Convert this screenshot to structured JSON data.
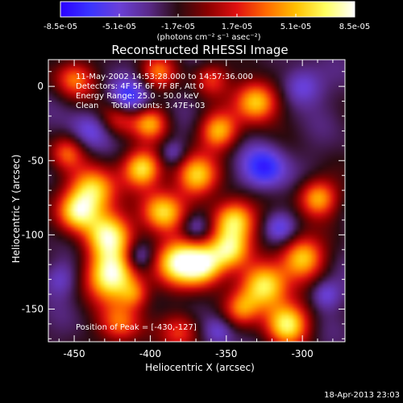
{
  "colorbar": {
    "tick_labels": [
      "-8.5e-05",
      "-5.1e-05",
      "-1.7e-05",
      "1.7e-05",
      "5.1e-05",
      "8.5e-05"
    ],
    "units_label": "(photons cm⁻² s⁻¹ asec⁻²)",
    "colors": [
      "#2a00ff",
      "#3a34ff",
      "#6a40d8",
      "#5a2a8a",
      "#2a0a10",
      "#8a0000",
      "#e01010",
      "#ff6a00",
      "#ffc000",
      "#ffff60",
      "#ffffff"
    ]
  },
  "plot": {
    "title": "Reconstructed RHESSI Image",
    "xlabel": "Heliocentric X (arcsec)",
    "ylabel": "Heliocentric Y (arcsec)",
    "xlim": [
      -467,
      -272
    ],
    "ylim": [
      -172,
      18
    ],
    "x_ticks": [
      "-450",
      "-400",
      "-350",
      "-300"
    ],
    "y_ticks": [
      "0",
      "-50",
      "-100",
      "-150"
    ],
    "annotations": [
      "11-May-2002 14:53:28.000 to 14:57:36.000",
      "Detectors: 4F 5F 6F 7F 8F, Att 0",
      "Energy Range: 25.0 - 50.0 keV",
      "Clean     Total counts: 3.47E+03"
    ],
    "peak_label": "Position of Peak = [-430,-127]",
    "peak": {
      "x": -430,
      "y": -127
    }
  },
  "timestamp": "18-Apr-2013 23:03",
  "map": {
    "blobs": [
      {
        "x": -425,
        "y": -127,
        "s": 12,
        "a": 1.0
      },
      {
        "x": -428,
        "y": -100,
        "s": 11,
        "a": 0.85
      },
      {
        "x": -438,
        "y": -70,
        "s": 11,
        "a": 0.85
      },
      {
        "x": -448,
        "y": -85,
        "s": 9,
        "a": 0.7
      },
      {
        "x": -455,
        "y": -45,
        "s": 8,
        "a": 0.45
      },
      {
        "x": -450,
        "y": 5,
        "s": 9,
        "a": 0.55
      },
      {
        "x": -420,
        "y": -20,
        "s": 9,
        "a": 0.55
      },
      {
        "x": -405,
        "y": -55,
        "s": 9,
        "a": 0.8
      },
      {
        "x": -400,
        "y": -25,
        "s": 8,
        "a": 0.6
      },
      {
        "x": -392,
        "y": -85,
        "s": 10,
        "a": 0.8
      },
      {
        "x": -382,
        "y": -118,
        "s": 11,
        "a": 0.85
      },
      {
        "x": -365,
        "y": -120,
        "s": 10,
        "a": 0.9
      },
      {
        "x": -370,
        "y": -60,
        "s": 10,
        "a": 0.75
      },
      {
        "x": -355,
        "y": -30,
        "s": 9,
        "a": 0.7
      },
      {
        "x": -345,
        "y": -90,
        "s": 10,
        "a": 0.85
      },
      {
        "x": -348,
        "y": -110,
        "s": 9,
        "a": 0.7
      },
      {
        "x": -330,
        "y": -10,
        "s": 10,
        "a": 0.8
      },
      {
        "x": -325,
        "y": -135,
        "s": 11,
        "a": 0.9
      },
      {
        "x": -310,
        "y": -160,
        "s": 10,
        "a": 0.85
      },
      {
        "x": -300,
        "y": -115,
        "s": 10,
        "a": 0.75
      },
      {
        "x": -290,
        "y": -75,
        "s": 9,
        "a": 0.7
      },
      {
        "x": -420,
        "y": -160,
        "s": 10,
        "a": 0.55
      },
      {
        "x": -380,
        "y": -165,
        "s": 9,
        "a": 0.45
      },
      {
        "x": -340,
        "y": -150,
        "s": 8,
        "a": 0.45
      },
      {
        "x": -395,
        "y": 10,
        "s": 8,
        "a": 0.5
      },
      {
        "x": -360,
        "y": 5,
        "s": 8,
        "a": 0.45
      },
      {
        "x": -410,
        "y": -140,
        "s": 7,
        "a": 0.4
      },
      {
        "x": -385,
        "y": -45,
        "s": 6,
        "a": -0.25
      },
      {
        "x": -415,
        "y": -10,
        "s": 9,
        "a": -0.55
      },
      {
        "x": -325,
        "y": -55,
        "s": 10,
        "a": -0.5
      },
      {
        "x": -370,
        "y": -95,
        "s": 7,
        "a": -0.35
      },
      {
        "x": -440,
        "y": -30,
        "s": 9,
        "a": -0.3
      },
      {
        "x": -300,
        "y": 0,
        "s": 9,
        "a": -0.35
      },
      {
        "x": -408,
        "y": -115,
        "s": 7,
        "a": -0.4
      },
      {
        "x": -460,
        "y": -130,
        "s": 8,
        "a": -0.25
      },
      {
        "x": -315,
        "y": -95,
        "s": 7,
        "a": -0.3
      },
      {
        "x": -355,
        "y": -165,
        "s": 7,
        "a": -0.25
      },
      {
        "x": -285,
        "y": -140,
        "s": 7,
        "a": -0.3
      }
    ]
  }
}
